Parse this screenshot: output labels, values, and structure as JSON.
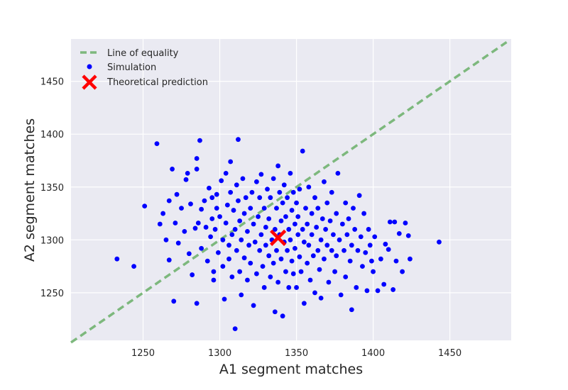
{
  "chart_data": {
    "type": "scatter",
    "title": "",
    "xlabel": "A1 segment matches",
    "ylabel": "A2 segment matches",
    "xlim": [
      1203,
      1490
    ],
    "ylim": [
      1205,
      1490
    ],
    "xticks": [
      1250,
      1300,
      1350,
      1400,
      1450
    ],
    "yticks": [
      1250,
      1300,
      1350,
      1400,
      1450
    ],
    "grid": true,
    "legend_position": "top-left",
    "background_color": "#EAEAF2",
    "legend": [
      {
        "label": "Line of equality",
        "marker": "dashed-line",
        "color": "#7DB87D"
      },
      {
        "label": "Simulation",
        "marker": "dot",
        "color": "#0000FF"
      },
      {
        "label": "Theoretical prediction",
        "marker": "x",
        "color": "#FF0000"
      }
    ],
    "series": [
      {
        "name": "Line of equality",
        "kind": "line",
        "style": "dashed",
        "color": "#7DB87D",
        "x": [
          1203,
          1487
        ],
        "y": [
          1203,
          1487
        ]
      },
      {
        "name": "Simulation",
        "kind": "scatter",
        "color": "#0000FF",
        "points": [
          [
            1233,
            1282
          ],
          [
            1244,
            1275
          ],
          [
            1251,
            1332
          ],
          [
            1259,
            1391
          ],
          [
            1261,
            1315
          ],
          [
            1263,
            1325
          ],
          [
            1265,
            1300
          ],
          [
            1267,
            1337
          ],
          [
            1267,
            1281
          ],
          [
            1269,
            1367
          ],
          [
            1270,
            1242
          ],
          [
            1271,
            1316
          ],
          [
            1272,
            1343
          ],
          [
            1273,
            1297
          ],
          [
            1275,
            1330
          ],
          [
            1277,
            1308
          ],
          [
            1278,
            1357
          ],
          [
            1279,
            1363
          ],
          [
            1280,
            1287
          ],
          [
            1281,
            1334
          ],
          [
            1282,
            1267
          ],
          [
            1284,
            1311
          ],
          [
            1285,
            1377
          ],
          [
            1285,
            1367
          ],
          [
            1285,
            1240
          ],
          [
            1286,
            1316
          ],
          [
            1287,
            1394
          ],
          [
            1288,
            1292
          ],
          [
            1288,
            1329
          ],
          [
            1290,
            1337
          ],
          [
            1291,
            1312
          ],
          [
            1292,
            1280
          ],
          [
            1293,
            1349
          ],
          [
            1294,
            1303
          ],
          [
            1295,
            1320
          ],
          [
            1295,
            1340
          ],
          [
            1296,
            1270
          ],
          [
            1296,
            1262
          ],
          [
            1297,
            1310
          ],
          [
            1298,
            1330
          ],
          [
            1298,
            1343
          ],
          [
            1299,
            1288
          ],
          [
            1300,
            1322
          ],
          [
            1301,
            1356
          ],
          [
            1302,
            1300
          ],
          [
            1302,
            1275
          ],
          [
            1303,
            1244
          ],
          [
            1304,
            1363
          ],
          [
            1304,
            1316
          ],
          [
            1305,
            1333
          ],
          [
            1306,
            1295
          ],
          [
            1306,
            1282
          ],
          [
            1307,
            1374
          ],
          [
            1307,
            1345
          ],
          [
            1308,
            1305
          ],
          [
            1308,
            1265
          ],
          [
            1309,
            1328
          ],
          [
            1310,
            1310
          ],
          [
            1310,
            1216
          ],
          [
            1311,
            1352
          ],
          [
            1311,
            1290
          ],
          [
            1312,
            1395
          ],
          [
            1312,
            1337
          ],
          [
            1313,
            1318
          ],
          [
            1313,
            1270
          ],
          [
            1314,
            1300
          ],
          [
            1314,
            1248
          ],
          [
            1315,
            1358
          ],
          [
            1316,
            1283
          ],
          [
            1316,
            1325
          ],
          [
            1317,
            1340
          ],
          [
            1318,
            1308
          ],
          [
            1318,
            1262
          ],
          [
            1319,
            1295
          ],
          [
            1320,
            1330
          ],
          [
            1320,
            1278
          ],
          [
            1321,
            1345
          ],
          [
            1322,
            1238
          ],
          [
            1322,
            1315
          ],
          [
            1323,
            1298
          ],
          [
            1324,
            1355
          ],
          [
            1324,
            1268
          ],
          [
            1325,
            1322
          ],
          [
            1326,
            1290
          ],
          [
            1326,
            1340
          ],
          [
            1327,
            1362
          ],
          [
            1327,
            1305
          ],
          [
            1328,
            1275
          ],
          [
            1329,
            1330
          ],
          [
            1329,
            1255
          ],
          [
            1330,
            1312
          ],
          [
            1330,
            1295
          ],
          [
            1331,
            1348
          ],
          [
            1332,
            1285
          ],
          [
            1332,
            1320
          ],
          [
            1333,
            1265
          ],
          [
            1333,
            1340
          ],
          [
            1334,
            1300
          ],
          [
            1335,
            1358
          ],
          [
            1335,
            1278
          ],
          [
            1336,
            1310
          ],
          [
            1336,
            1232
          ],
          [
            1337,
            1330
          ],
          [
            1337,
            1290
          ],
          [
            1338,
            1370
          ],
          [
            1338,
            1260
          ],
          [
            1339,
            1345
          ],
          [
            1339,
            1305
          ],
          [
            1340,
            1318
          ],
          [
            1340,
            1282
          ],
          [
            1341,
            1335
          ],
          [
            1341,
            1228
          ],
          [
            1342,
            1298
          ],
          [
            1342,
            1352
          ],
          [
            1343,
            1270
          ],
          [
            1343,
            1322
          ],
          [
            1344,
            1340
          ],
          [
            1344,
            1290
          ],
          [
            1345,
            1310
          ],
          [
            1345,
            1255
          ],
          [
            1346,
            1363
          ],
          [
            1346,
            1300
          ],
          [
            1347,
            1328
          ],
          [
            1347,
            1280
          ],
          [
            1348,
            1345
          ],
          [
            1348,
            1268
          ],
          [
            1349,
            1315
          ],
          [
            1349,
            1292
          ],
          [
            1350,
            1335
          ],
          [
            1350,
            1255
          ],
          [
            1351,
            1305
          ],
          [
            1351,
            1322
          ],
          [
            1352,
            1284
          ],
          [
            1352,
            1348
          ],
          [
            1353,
            1270
          ],
          [
            1354,
            1384
          ],
          [
            1354,
            1310
          ],
          [
            1355,
            1298
          ],
          [
            1355,
            1240
          ],
          [
            1356,
            1330
          ],
          [
            1357,
            1278
          ],
          [
            1357,
            1315
          ],
          [
            1358,
            1350
          ],
          [
            1358,
            1295
          ],
          [
            1359,
            1262
          ],
          [
            1360,
            1325
          ],
          [
            1360,
            1305
          ],
          [
            1361,
            1285
          ],
          [
            1362,
            1340
          ],
          [
            1362,
            1250
          ],
          [
            1363,
            1312
          ],
          [
            1364,
            1290
          ],
          [
            1364,
            1330
          ],
          [
            1365,
            1272
          ],
          [
            1366,
            1300
          ],
          [
            1366,
            1245
          ],
          [
            1367,
            1320
          ],
          [
            1368,
            1355
          ],
          [
            1368,
            1282
          ],
          [
            1369,
            1310
          ],
          [
            1370,
            1295
          ],
          [
            1370,
            1335
          ],
          [
            1371,
            1260
          ],
          [
            1372,
            1318
          ],
          [
            1373,
            1290
          ],
          [
            1373,
            1345
          ],
          [
            1374,
            1305
          ],
          [
            1375,
            1270
          ],
          [
            1376,
            1325
          ],
          [
            1376,
            1285
          ],
          [
            1377,
            1363
          ],
          [
            1378,
            1300
          ],
          [
            1379,
            1248
          ],
          [
            1380,
            1315
          ],
          [
            1381,
            1290
          ],
          [
            1382,
            1335
          ],
          [
            1382,
            1265
          ],
          [
            1383,
            1305
          ],
          [
            1384,
            1320
          ],
          [
            1385,
            1280
          ],
          [
            1386,
            1295
          ],
          [
            1386,
            1234
          ],
          [
            1387,
            1330
          ],
          [
            1388,
            1310
          ],
          [
            1389,
            1255
          ],
          [
            1390,
            1290
          ],
          [
            1391,
            1342
          ],
          [
            1392,
            1303
          ],
          [
            1393,
            1275
          ],
          [
            1394,
            1325
          ],
          [
            1395,
            1288
          ],
          [
            1396,
            1252
          ],
          [
            1397,
            1310
          ],
          [
            1398,
            1295
          ],
          [
            1399,
            1280
          ],
          [
            1400,
            1270
          ],
          [
            1401,
            1303
          ],
          [
            1403,
            1252
          ],
          [
            1405,
            1282
          ],
          [
            1407,
            1258
          ],
          [
            1408,
            1296
          ],
          [
            1410,
            1291
          ],
          [
            1411,
            1317
          ],
          [
            1413,
            1253
          ],
          [
            1414,
            1317
          ],
          [
            1415,
            1280
          ],
          [
            1417,
            1306
          ],
          [
            1419,
            1270
          ],
          [
            1421,
            1316
          ],
          [
            1423,
            1304
          ],
          [
            1424,
            1282
          ],
          [
            1443,
            1298
          ]
        ]
      },
      {
        "name": "Theoretical prediction",
        "kind": "marker",
        "color": "#FF0000",
        "x": [
          1338
        ],
        "y": [
          1302
        ]
      }
    ]
  }
}
